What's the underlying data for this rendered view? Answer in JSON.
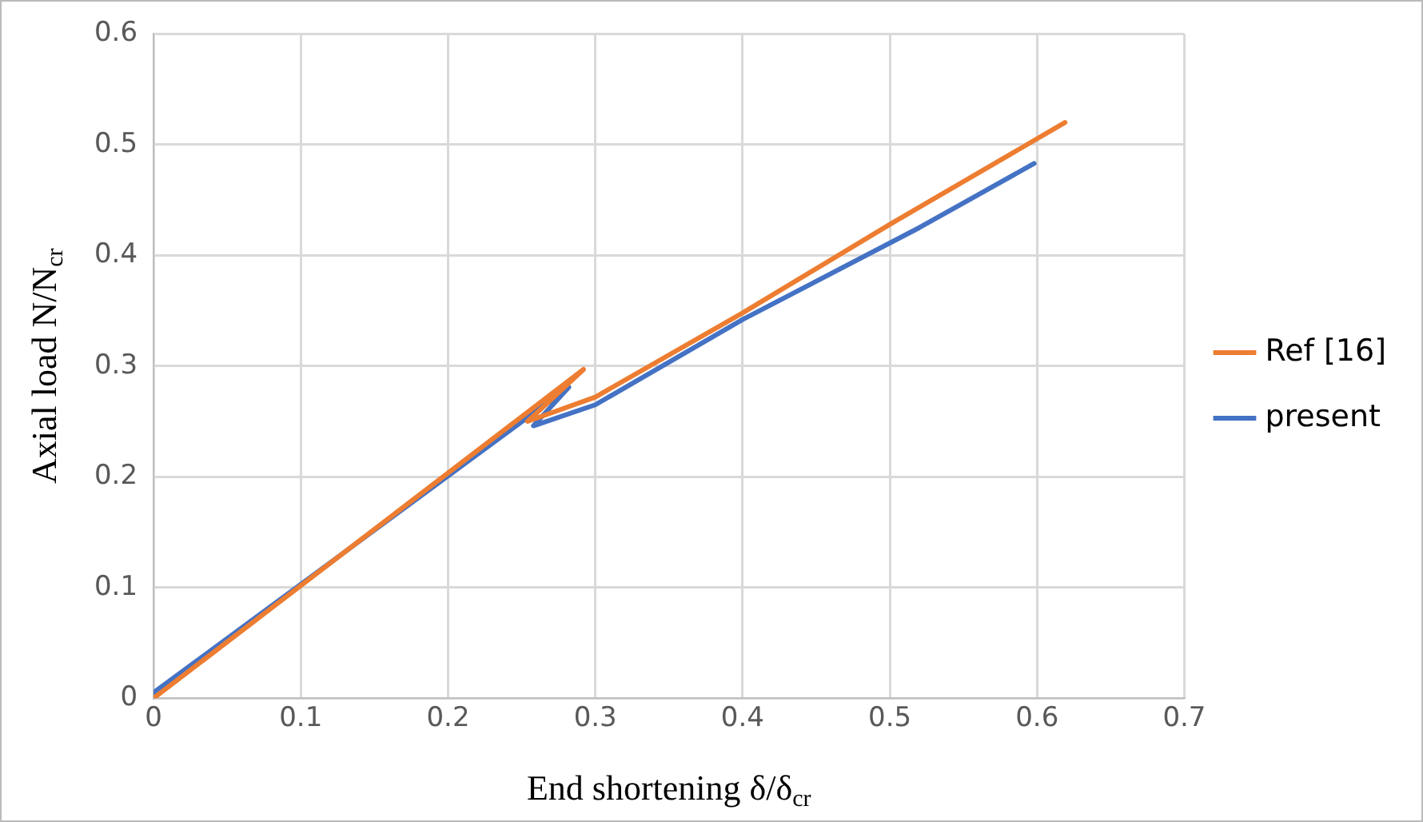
{
  "chart_data": {
    "type": "line",
    "xlabel": "End shortening δ/δ$_{cr}$",
    "ylabel": "Axial load N/N$_{cr}$",
    "xlim": [
      0,
      0.7
    ],
    "xticks": [
      0,
      0.1,
      0.2,
      0.3,
      0.4,
      0.5,
      0.6,
      0.7
    ],
    "ylim": [
      0,
      0.6
    ],
    "yticks": [
      0,
      0.1,
      0.2,
      0.3,
      0.4,
      0.5,
      0.6
    ],
    "grid": true,
    "legend": "right",
    "marker": "none",
    "line_style": "solid",
    "series": [
      {
        "name": "Ref [16]",
        "color": "#ed7d31",
        "x": [
          0,
          0.292,
          0.254,
          0.3,
          0.4,
          0.5,
          0.619
        ],
        "values": [
          0,
          0.297,
          0.25,
          0.272,
          0.348,
          0.428,
          0.52
        ]
      },
      {
        "name": "present",
        "color": "#4472c4",
        "x": [
          0,
          0.282,
          0.258,
          0.3,
          0.4,
          0.52,
          0.598
        ],
        "values": [
          0.005,
          0.281,
          0.246,
          0.265,
          0.342,
          0.425,
          0.483
        ]
      }
    ]
  }
}
